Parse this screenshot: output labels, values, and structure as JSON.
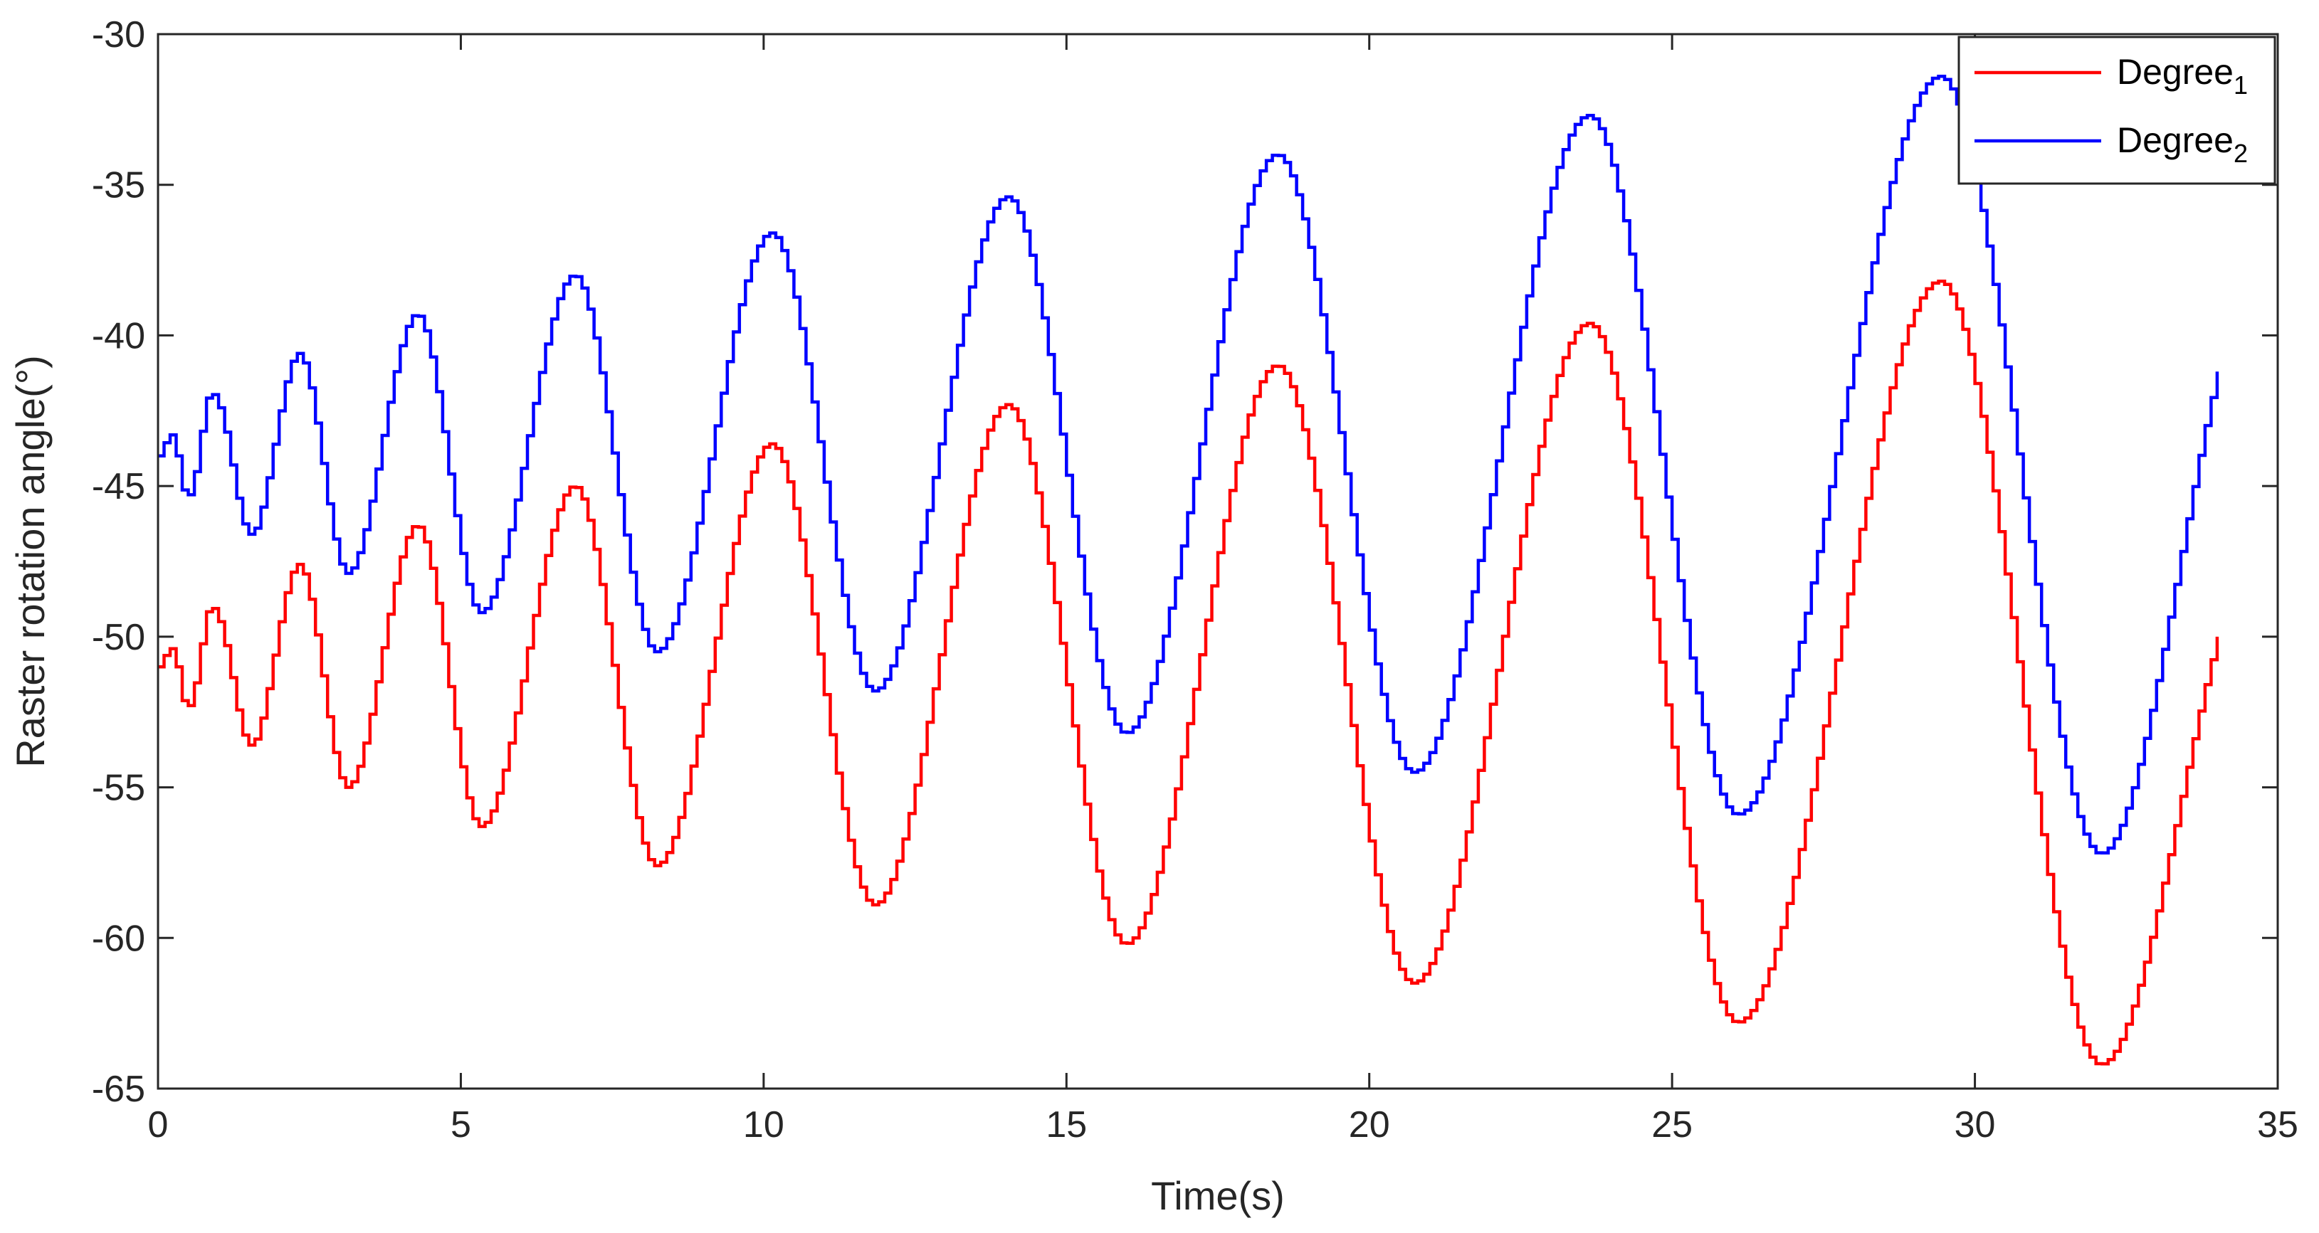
{
  "chart_data": {
    "type": "line",
    "xlabel": "Time(s)",
    "ylabel": "Raster rotation angle(°)",
    "xlim": [
      0,
      35
    ],
    "ylim": [
      -65,
      -30
    ],
    "xticks": [
      0,
      5,
      10,
      15,
      20,
      25,
      30,
      35
    ],
    "yticks": [
      -30,
      -35,
      -40,
      -45,
      -50,
      -55,
      -60,
      -65
    ],
    "xtick_labels": [
      "0",
      "5",
      "10",
      "15",
      "20",
      "25",
      "30",
      "35"
    ],
    "ytick_labels": [
      "-30",
      "-35",
      "-40",
      "-45",
      "-50",
      "-55",
      "-60",
      "-65"
    ],
    "grid": false,
    "legend_position": "top-right",
    "line_style": "staircase",
    "series": [
      {
        "name": "Degree",
        "name_sub": "1",
        "color": "#ff0000",
        "x": [
          0,
          0.2,
          0.3,
          0.45,
          0.55,
          0.85,
          1.0,
          1.5,
          1.6,
          2.3,
          3.1,
          4.25,
          5.3,
          6.85,
          8.2,
          10.1,
          11.8,
          14.0,
          15.95,
          18.45,
          20.7,
          23.6,
          26.05,
          29.4,
          32.05,
          34.0
        ],
        "y": [
          -51.0,
          -50.4,
          -51.0,
          -52.4,
          -52.0,
          -49.0,
          -49.5,
          -53.6,
          -53.4,
          -47.6,
          -55.0,
          -46.3,
          -56.3,
          -45.0,
          -57.6,
          -43.6,
          -58.9,
          -42.3,
          -60.2,
          -41.0,
          -61.5,
          -39.6,
          -62.8,
          -38.2,
          -64.2,
          -50.0
        ]
      },
      {
        "name": "Degree",
        "name_sub": "2",
        "color": "#0000ff",
        "x": [
          0,
          0.2,
          0.3,
          0.45,
          0.55,
          0.85,
          1.0,
          1.5,
          1.6,
          2.3,
          3.1,
          4.25,
          5.3,
          6.85,
          8.2,
          10.1,
          11.8,
          14.0,
          15.95,
          18.45,
          20.7,
          23.6,
          26.05,
          29.4,
          32.05,
          34.0
        ],
        "y": [
          -44.0,
          -43.3,
          -44.0,
          -45.4,
          -45.0,
          -41.9,
          -42.4,
          -46.6,
          -46.4,
          -40.6,
          -47.9,
          -39.3,
          -49.2,
          -38.0,
          -50.5,
          -36.6,
          -51.8,
          -35.4,
          -53.2,
          -34.0,
          -54.5,
          -32.7,
          -55.9,
          -31.4,
          -57.2,
          -41.2
        ]
      }
    ]
  }
}
